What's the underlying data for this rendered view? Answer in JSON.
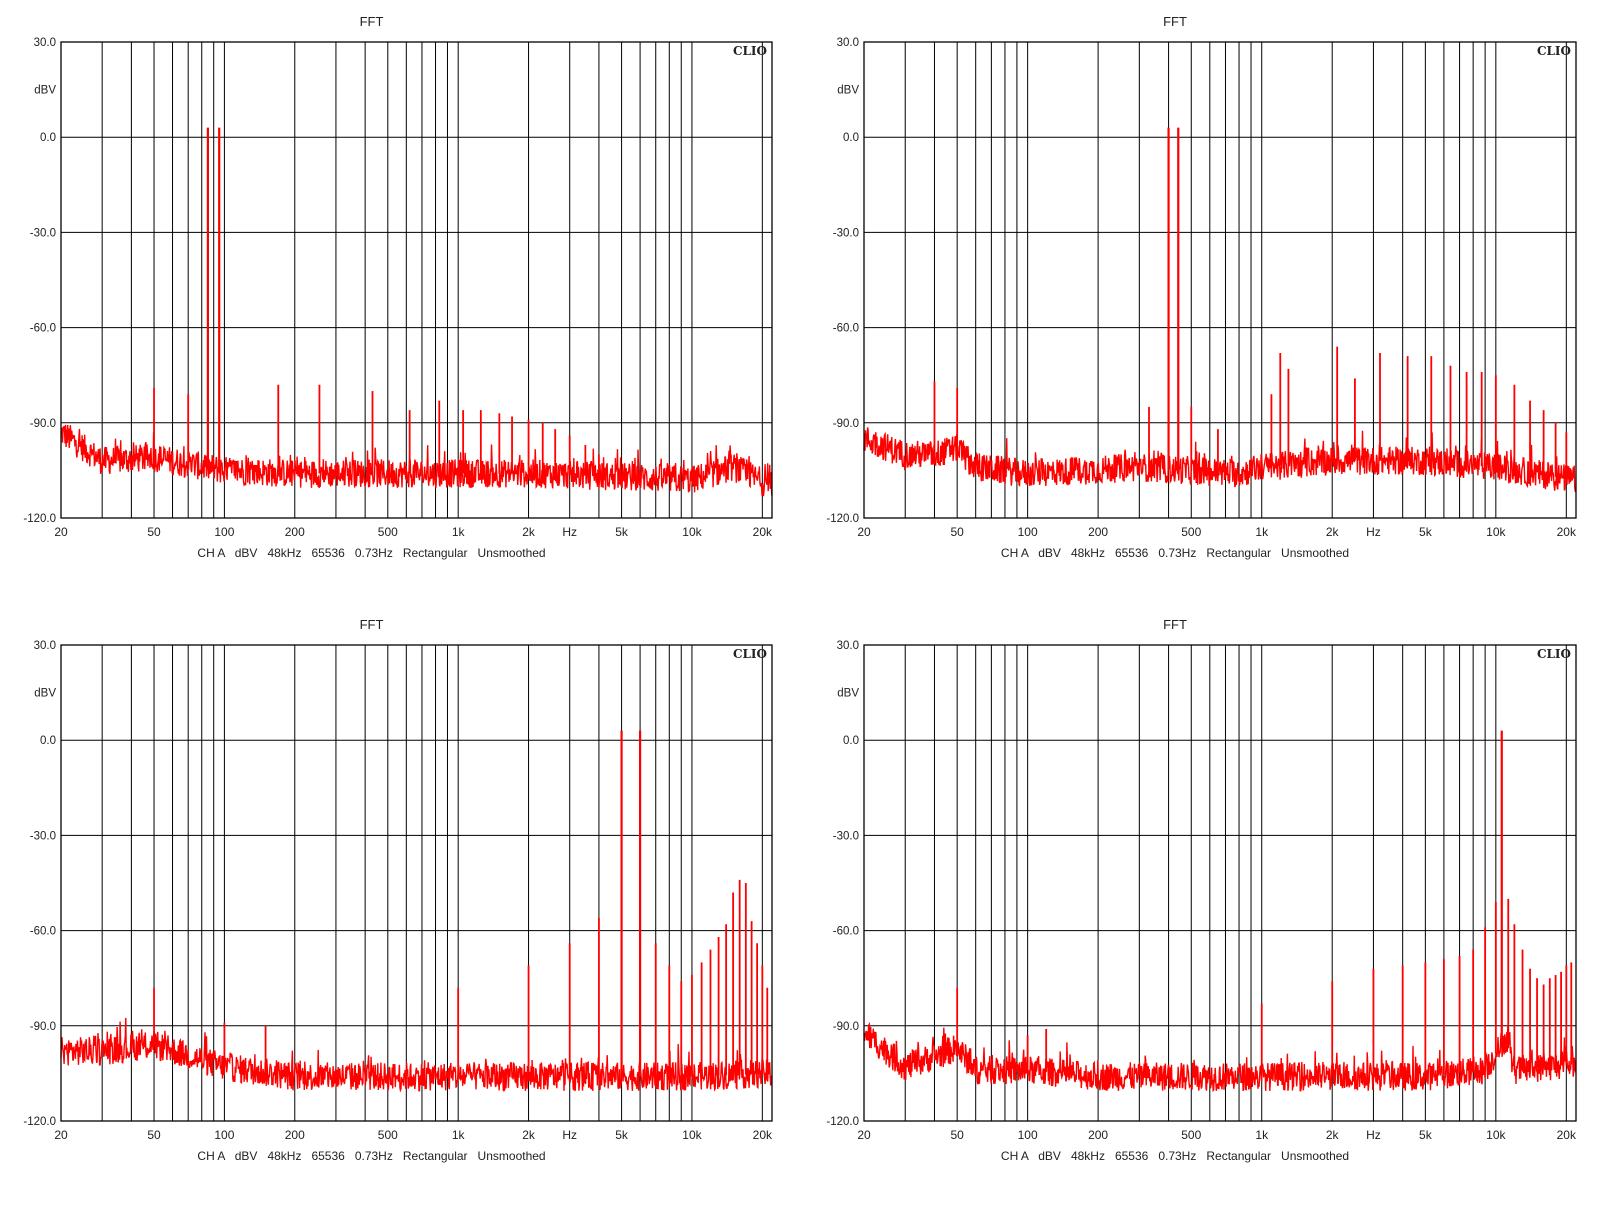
{
  "charts_common": {
    "title": "FFT",
    "y_unit": "dBV",
    "brand": "CLIO",
    "x_unit": "Hz",
    "footer": "CH A   dBV   48kHz   65536   0.73Hz   Rectangular   Unsmoothed",
    "trace_color": "#ff0000"
  },
  "chart_data": [
    {
      "type": "line",
      "title": "FFT",
      "ylabel": "dBV",
      "xlabel": "Hz",
      "x_scale": "log",
      "xlim": [
        20,
        22000
      ],
      "ylim": [
        -120,
        30
      ],
      "y_ticks": [
        "30.0",
        "dBV",
        "0.0",
        "-30.0",
        "-60.0",
        "-90.0",
        "-120.0"
      ],
      "x_ticks": [
        "20",
        "50",
        "100",
        "200",
        "500",
        "1k",
        "2k",
        "Hz",
        "5k",
        "10k",
        "20k"
      ],
      "grid": true,
      "series": [
        {
          "color": "#ff0000",
          "floor": [
            [
              20,
              -93
            ],
            [
              30,
              -102
            ],
            [
              50,
              -101
            ],
            [
              100,
              -105
            ],
            [
              200,
              -106
            ],
            [
              500,
              -106
            ],
            [
              1000,
              -106
            ],
            [
              2000,
              -106
            ],
            [
              5000,
              -107
            ],
            [
              10000,
              -108
            ],
            [
              15000,
              -104
            ],
            [
              22000,
              -110
            ]
          ],
          "peaks": [
            [
              50,
              -79
            ],
            [
              70,
              -81
            ],
            [
              85,
              3
            ],
            [
              95,
              3
            ],
            [
              170,
              -78
            ],
            [
              255,
              -78
            ],
            [
              430,
              -80
            ],
            [
              620,
              -86
            ],
            [
              830,
              -83
            ],
            [
              1050,
              -86
            ],
            [
              1250,
              -86
            ],
            [
              1500,
              -87
            ],
            [
              1700,
              -88
            ],
            [
              2000,
              -89
            ],
            [
              2300,
              -90
            ],
            [
              2600,
              -92
            ],
            [
              3000,
              -94
            ],
            [
              3500,
              -97
            ],
            [
              4000,
              -100
            ]
          ]
        }
      ]
    },
    {
      "type": "line",
      "title": "FFT",
      "ylabel": "dBV",
      "xlabel": "Hz",
      "x_scale": "log",
      "xlim": [
        20,
        22000
      ],
      "ylim": [
        -120,
        30
      ],
      "y_ticks": [
        "30.0",
        "dBV",
        "0.0",
        "-30.0",
        "-60.0",
        "-90.0",
        "-120.0"
      ],
      "x_ticks": [
        "20",
        "50",
        "100",
        "200",
        "500",
        "1k",
        "2k",
        "Hz",
        "5k",
        "10k",
        "20k"
      ],
      "grid": true,
      "series": [
        {
          "color": "#ff0000",
          "floor": [
            [
              20,
              -95
            ],
            [
              30,
              -100
            ],
            [
              40,
              -100
            ],
            [
              50,
              -98
            ],
            [
              60,
              -104
            ],
            [
              100,
              -106
            ],
            [
              300,
              -104
            ],
            [
              800,
              -106
            ],
            [
              1000,
              -104
            ],
            [
              2000,
              -102
            ],
            [
              5000,
              -102
            ],
            [
              10000,
              -104
            ],
            [
              22000,
              -108
            ]
          ],
          "peaks": [
            [
              40,
              -77
            ],
            [
              50,
              -79
            ],
            [
              330,
              -85
            ],
            [
              400,
              3
            ],
            [
              440,
              3
            ],
            [
              500,
              -85
            ],
            [
              650,
              -92
            ],
            [
              1100,
              -81
            ],
            [
              1200,
              -68
            ],
            [
              1300,
              -73
            ],
            [
              2100,
              -66
            ],
            [
              2500,
              -76
            ],
            [
              3200,
              -68
            ],
            [
              4200,
              -69
            ],
            [
              5300,
              -69
            ],
            [
              6400,
              -72
            ],
            [
              7500,
              -74
            ],
            [
              8700,
              -74
            ],
            [
              10000,
              -75
            ],
            [
              12000,
              -78
            ],
            [
              14000,
              -83
            ],
            [
              16000,
              -86
            ],
            [
              18000,
              -90
            ],
            [
              20000,
              -93
            ]
          ]
        }
      ]
    },
    {
      "type": "line",
      "title": "FFT",
      "ylabel": "dBV",
      "xlabel": "Hz",
      "x_scale": "log",
      "xlim": [
        20,
        22000
      ],
      "ylim": [
        -120,
        30
      ],
      "y_ticks": [
        "30.0",
        "dBV",
        "0.0",
        "-30.0",
        "-60.0",
        "-90.0",
        "-120.0"
      ],
      "x_ticks": [
        "20",
        "50",
        "100",
        "200",
        "500",
        "1k",
        "2k",
        "Hz",
        "5k",
        "10k",
        "20k"
      ],
      "grid": true,
      "series": [
        {
          "color": "#ff0000",
          "floor": [
            [
              20,
              -98
            ],
            [
              30,
              -98
            ],
            [
              50,
              -96
            ],
            [
              100,
              -103
            ],
            [
              200,
              -106
            ],
            [
              500,
              -106
            ],
            [
              1000,
              -106
            ],
            [
              2000,
              -106
            ],
            [
              5000,
              -106
            ],
            [
              10000,
              -106
            ],
            [
              22000,
              -105
            ]
          ],
          "peaks": [
            [
              50,
              -78
            ],
            [
              100,
              -89
            ],
            [
              150,
              -90
            ],
            [
              1000,
              -78
            ],
            [
              2000,
              -71
            ],
            [
              3000,
              -64
            ],
            [
              4000,
              -56
            ],
            [
              5000,
              3
            ],
            [
              6000,
              3
            ],
            [
              7000,
              -64
            ],
            [
              8000,
              -71
            ],
            [
              9000,
              -76
            ],
            [
              10000,
              -74
            ],
            [
              11000,
              -70
            ],
            [
              12000,
              -66
            ],
            [
              13000,
              -62
            ],
            [
              14000,
              -58
            ],
            [
              15000,
              -48
            ],
            [
              16000,
              -44
            ],
            [
              17000,
              -45
            ],
            [
              18000,
              -57
            ],
            [
              19000,
              -64
            ],
            [
              20000,
              -71
            ],
            [
              21000,
              -78
            ]
          ]
        }
      ]
    },
    {
      "type": "line",
      "title": "FFT",
      "ylabel": "dBV",
      "xlabel": "Hz",
      "x_scale": "log",
      "xlim": [
        20,
        22000
      ],
      "ylim": [
        -120,
        30
      ],
      "y_ticks": [
        "30.0",
        "dBV",
        "0.0",
        "-30.0",
        "-60.0",
        "-90.0",
        "-120.0"
      ],
      "x_ticks": [
        "20",
        "50",
        "100",
        "200",
        "500",
        "1k",
        "2k",
        "Hz",
        "5k",
        "10k",
        "20k"
      ],
      "grid": true,
      "series": [
        {
          "color": "#ff0000",
          "floor": [
            [
              20,
              -92
            ],
            [
              30,
              -103
            ],
            [
              50,
              -97
            ],
            [
              60,
              -104
            ],
            [
              100,
              -104
            ],
            [
              200,
              -106
            ],
            [
              500,
              -106
            ],
            [
              1000,
              -106
            ],
            [
              2000,
              -106
            ],
            [
              5000,
              -106
            ],
            [
              9000,
              -104
            ],
            [
              11000,
              -94
            ],
            [
              12000,
              -104
            ],
            [
              22000,
              -102
            ]
          ],
          "peaks": [
            [
              50,
              -78
            ],
            [
              100,
              -93
            ],
            [
              120,
              -91
            ],
            [
              1000,
              -83
            ],
            [
              2000,
              -76
            ],
            [
              3000,
              -72
            ],
            [
              4000,
              -71
            ],
            [
              5000,
              -70
            ],
            [
              6000,
              -69
            ],
            [
              7000,
              -68
            ],
            [
              8000,
              -66
            ],
            [
              9000,
              -59
            ],
            [
              10000,
              -51
            ],
            [
              10600,
              3
            ],
            [
              11300,
              -50
            ],
            [
              12000,
              -58
            ],
            [
              13000,
              -66
            ],
            [
              14000,
              -72
            ],
            [
              15000,
              -75
            ],
            [
              16000,
              -77
            ],
            [
              17000,
              -75
            ],
            [
              18000,
              -74
            ],
            [
              19000,
              -73
            ],
            [
              20000,
              -71
            ],
            [
              21000,
              -70
            ]
          ]
        }
      ]
    }
  ]
}
